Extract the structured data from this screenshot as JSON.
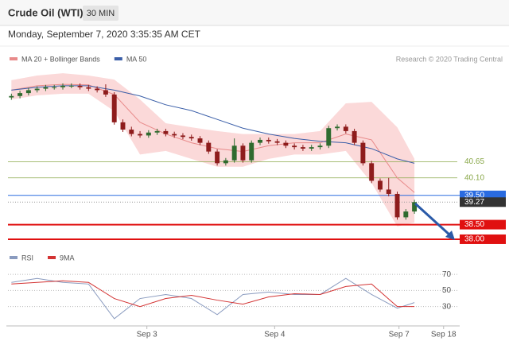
{
  "header": {
    "title": "Crude Oil (WTI)",
    "timeframe": "30 MIN",
    "date": "Monday, September 7, 2020 3:35:35 AM CET"
  },
  "chart_data": [
    {
      "type": "candlestick",
      "annotation": "Research © 2020 Trading Central",
      "up_color": "#2f6b2f",
      "down_color": "#8e1c1c",
      "x": [
        0,
        1,
        2,
        3,
        4,
        5,
        6,
        7,
        8,
        9,
        10,
        11,
        12,
        13,
        14,
        15,
        16,
        17,
        18,
        19,
        20,
        21,
        22,
        23,
        24,
        25,
        26,
        27,
        28,
        29,
        30,
        31,
        32,
        33,
        34,
        35,
        36,
        37,
        38,
        39,
        40,
        41,
        42,
        43,
        44,
        45,
        46,
        47
      ],
      "open": [
        42.85,
        42.9,
        43.0,
        43.1,
        43.15,
        43.2,
        43.2,
        43.25,
        43.25,
        43.2,
        43.15,
        43.1,
        42.95,
        42.0,
        41.75,
        41.6,
        41.55,
        41.65,
        41.7,
        41.6,
        41.55,
        41.5,
        41.45,
        41.3,
        41.0,
        40.6,
        40.7,
        41.2,
        40.7,
        41.3,
        41.4,
        41.35,
        41.3,
        41.2,
        41.15,
        41.1,
        41.15,
        41.2,
        41.8,
        41.85,
        41.7,
        41.3,
        40.6,
        40.0,
        39.7,
        39.55,
        38.75,
        38.95
      ],
      "high": [
        42.98,
        43.08,
        43.18,
        43.23,
        43.28,
        43.28,
        43.33,
        43.33,
        43.33,
        43.28,
        43.23,
        43.3,
        43.03,
        42.1,
        41.85,
        41.7,
        41.73,
        41.78,
        41.78,
        41.68,
        41.63,
        41.58,
        41.53,
        41.38,
        41.08,
        40.78,
        41.45,
        41.28,
        41.38,
        41.48,
        41.48,
        41.43,
        41.38,
        41.28,
        41.23,
        41.23,
        41.28,
        41.88,
        41.93,
        41.93,
        41.78,
        41.38,
        40.68,
        40.08,
        40.1,
        39.63,
        39.03,
        39.35
      ],
      "low": [
        42.77,
        42.82,
        42.92,
        43.02,
        43.07,
        43.12,
        43.12,
        43.17,
        43.12,
        43.07,
        43.02,
        42.87,
        41.92,
        41.67,
        41.52,
        41.47,
        41.47,
        41.57,
        41.52,
        41.47,
        41.42,
        41.37,
        41.22,
        40.92,
        40.52,
        40.52,
        40.62,
        40.62,
        40.62,
        41.22,
        41.27,
        41.22,
        41.12,
        41.07,
        41.02,
        41.02,
        41.07,
        41.12,
        41.72,
        41.62,
        41.22,
        40.52,
        39.92,
        39.62,
        39.47,
        38.67,
        38.67,
        38.87
      ],
      "close": [
        42.9,
        43.0,
        43.1,
        43.15,
        43.2,
        43.2,
        43.25,
        43.25,
        43.2,
        43.15,
        43.1,
        42.95,
        42.0,
        41.75,
        41.6,
        41.55,
        41.65,
        41.7,
        41.6,
        41.55,
        41.5,
        41.45,
        41.3,
        41.0,
        40.6,
        40.7,
        41.2,
        40.7,
        41.3,
        41.4,
        41.35,
        41.3,
        41.2,
        41.15,
        41.1,
        41.15,
        41.2,
        41.8,
        41.85,
        41.7,
        41.3,
        40.6,
        40.0,
        39.7,
        39.55,
        38.75,
        38.95,
        39.27
      ],
      "xlim": [
        -0.4,
        52
      ],
      "ylim": [
        37.7,
        43.9
      ],
      "overlays": {
        "x": [
          0,
          3,
          6,
          9,
          12,
          15,
          18,
          21,
          24,
          27,
          30,
          33,
          36,
          39,
          42,
          45,
          47
        ],
        "series": [
          {
            "name": "MA 20 + Bollinger Bands",
            "color": "#e88a8a",
            "band_color": "#fbd9d9",
            "values": [
              43.1,
              43.25,
              43.3,
              43.28,
              42.95,
              42.0,
              41.6,
              41.3,
              41.1,
              41.0,
              41.2,
              41.3,
              41.3,
              41.6,
              41.4,
              40.1,
              39.6
            ],
            "upper": [
              43.44,
              43.6,
              43.68,
              43.6,
              43.46,
              42.78,
              41.97,
              41.83,
              41.7,
              41.6,
              41.6,
              41.6,
              41.7,
              42.65,
              42.7,
              41.83,
              40.75
            ],
            "lower": [
              42.78,
              42.92,
              42.98,
              42.98,
              42.38,
              40.9,
              41.02,
              40.75,
              40.48,
              40.48,
              40.75,
              40.9,
              40.9,
              41.02,
              39.93,
              38.44,
              38.57
            ]
          },
          {
            "name": "MA 50",
            "color": "#3a5ea8",
            "values": [
              43.1,
              43.2,
              43.25,
              43.25,
              43.1,
              42.9,
              42.6,
              42.4,
              42.1,
              41.8,
              41.6,
              41.45,
              41.35,
              41.3,
              41.1,
              40.75,
              40.6
            ]
          }
        ]
      },
      "levels": [
        40.65,
        {
          "value": 40.1,
          "label": "40.10"
        },
        {
          "value": 39.5,
          "label": "39.50"
        },
        39.27,
        {
          "value": 38.5,
          "label": "38.50"
        },
        {
          "value": 38.0,
          "label": "38.00"
        }
      ],
      "level_colors": [
        "#8aa84a",
        "#8aa84a",
        "#2a6be0",
        "#333333",
        "#e01010",
        "#e01010"
      ],
      "level_styles": [
        "text",
        "text",
        "box",
        "dotted",
        "box",
        "box"
      ]
    },
    {
      "type": "line",
      "x": [
        0,
        3,
        6,
        9,
        12,
        15,
        18,
        21,
        24,
        27,
        30,
        33,
        36,
        39,
        42,
        45,
        47
      ],
      "xlim": [
        -0.4,
        52
      ],
      "xticks": [
        {
          "value": 15.8,
          "label": "Sep 3"
        },
        {
          "value": 30.7,
          "label": "Sep 4"
        },
        {
          "value": 45.2,
          "label": "Sep 7"
        },
        {
          "value": 50.4,
          "label": "Sep 18"
        }
      ],
      "ylim": [
        6,
        80
      ],
      "yticks": [
        70,
        50,
        30
      ],
      "grid": true,
      "series": [
        {
          "name": "RSI",
          "color": "#8a9bbf",
          "values": [
            60,
            65,
            60,
            58,
            15,
            40,
            45,
            40,
            20,
            45,
            48,
            45,
            45,
            65,
            45,
            28,
            35
          ]
        },
        {
          "name": "9MA",
          "color": "#d33333",
          "values": [
            58,
            60,
            62,
            60,
            40,
            30,
            40,
            44,
            38,
            33,
            42,
            46,
            45,
            55,
            58,
            30,
            30
          ]
        }
      ]
    }
  ]
}
